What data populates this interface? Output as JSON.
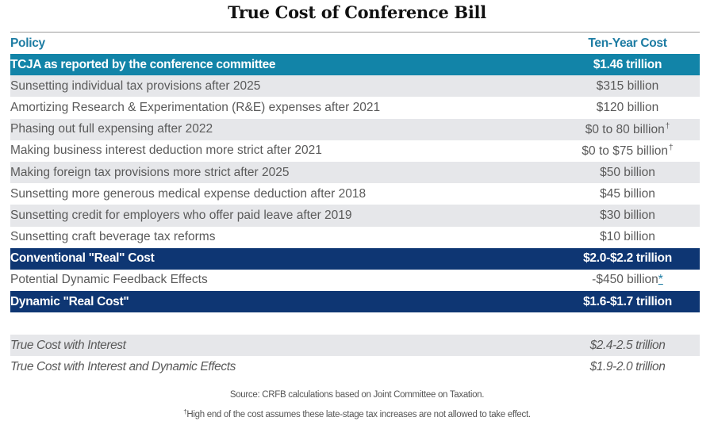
{
  "title": "True Cost of Conference Bill",
  "columns": {
    "policy": "Policy",
    "cost": "Ten-Year Cost"
  },
  "colors": {
    "header_text": "#1d7ca3",
    "teal_row": "#1284a8",
    "navy_row": "#0e3673",
    "stripe": "#e6e7ea"
  },
  "rows": [
    {
      "policy": "TCJA as reported by the conference committee",
      "cost": "$1.46 trillion",
      "style": "teal"
    },
    {
      "policy": "Sunsetting individual tax provisions after 2025",
      "cost": "$315 billion",
      "style": "gray"
    },
    {
      "policy": "Amortizing Research & Experimentation (R&E) expenses after 2021",
      "cost": "$120 billion",
      "style": "white"
    },
    {
      "policy": "Phasing out full expensing after 2022",
      "cost": "$0 to 80 billion",
      "mark": "†",
      "style": "gray"
    },
    {
      "policy": "Making business interest deduction more strict after 2021",
      "cost": "$0 to $75 billion",
      "mark": "†",
      "style": "white"
    },
    {
      "policy": "Making foreign tax provisions more strict after 2025",
      "cost": "$50 billion",
      "style": "gray"
    },
    {
      "policy": "Sunsetting more generous medical expense deduction after 2018",
      "cost": "$45 billion",
      "style": "white"
    },
    {
      "policy": "Sunsetting credit for employers who offer paid leave after 2019",
      "cost": "$30 billion",
      "style": "gray"
    },
    {
      "policy": "Sunsetting craft beverage tax reforms",
      "cost": "$10 billion",
      "style": "white"
    },
    {
      "policy": "Conventional \"Real\" Cost",
      "cost": "$2.0-$2.2 trillion",
      "style": "navy"
    },
    {
      "policy": "Potential Dynamic Feedback Effects",
      "cost": "-$450 billion",
      "link": "*",
      "style": "white"
    },
    {
      "policy": "Dynamic \"Real Cost\"",
      "cost": "$1.6-$1.7 trillion",
      "style": "navy"
    }
  ],
  "interest_rows": [
    {
      "policy": "True Cost with Interest",
      "cost": "$2.4-2.5 trillion",
      "style": "gray"
    },
    {
      "policy": "True Cost with Interest and Dynamic Effects",
      "cost": "$1.9-2.0 trillion",
      "style": "white"
    }
  ],
  "notes": {
    "source": "Source: CRFB calculations based on Joint Committee on Taxation.",
    "dagger_mark": "†",
    "dagger_note": "High end of the cost assumes these late-stage tax increases are not allowed to take effect."
  }
}
